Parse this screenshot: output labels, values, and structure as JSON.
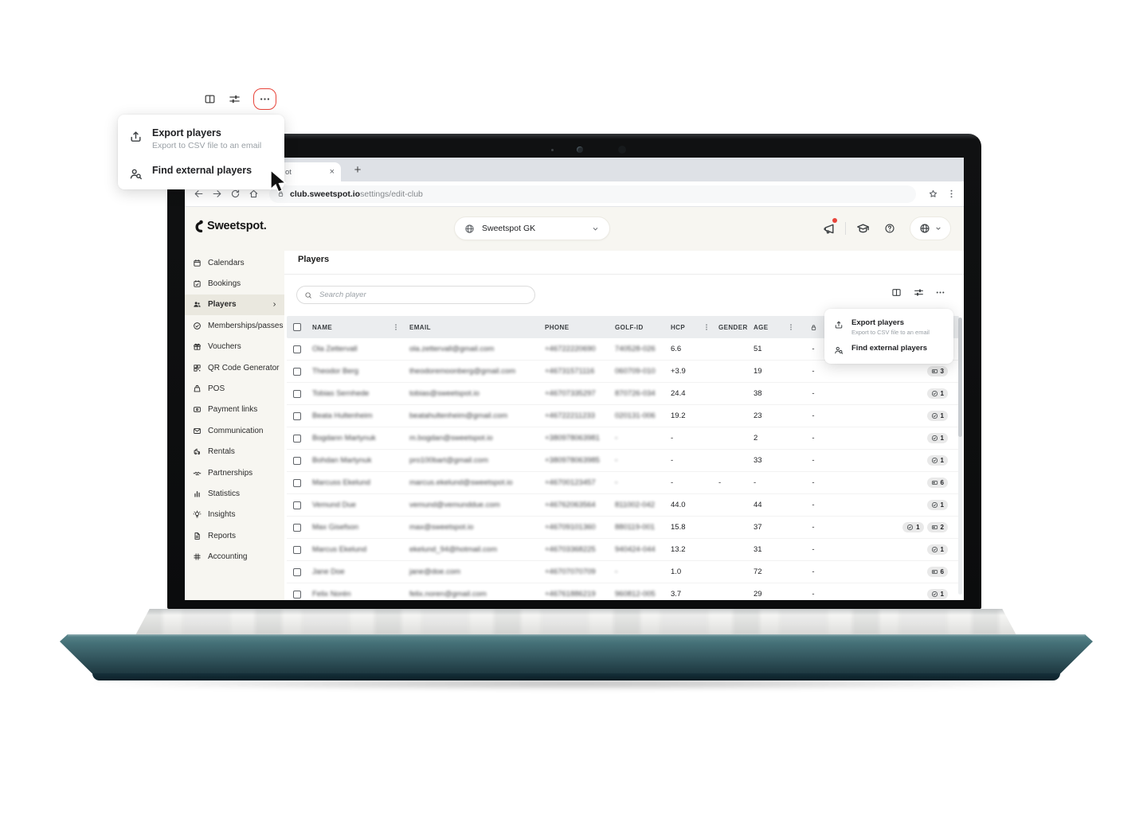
{
  "colors": {
    "accent_red": "#e8443a",
    "laptop_base_teal": "#3f6a71",
    "app_background": "#f7f6f1",
    "selected_sidebar_item": "#eae8df",
    "table_header_bg": "#ebedef"
  },
  "browser": {
    "tab_label": "ot",
    "close_tab": "×",
    "new_tab_button": "+",
    "url_host": "club.sweetspot.io",
    "url_path": "settings/edit-club",
    "icons": [
      "back-icon",
      "forward-icon",
      "reload-icon",
      "home-icon",
      "lock-icon",
      "star-icon",
      "kebab-icon"
    ]
  },
  "actions_menu": {
    "toolbar_icons": [
      "table-columns-icon",
      "filter-icon",
      "more-options-icon"
    ],
    "items": [
      {
        "icon": "export-icon",
        "label": "Export players",
        "sublabel": "Export to CSV file to an email"
      },
      {
        "icon": "find-external-icon",
        "label": "Find external players",
        "sublabel": ""
      }
    ]
  },
  "app": {
    "header": {
      "logo": "Sweetspot.",
      "club_selector": {
        "icon": "globe-icon",
        "label": "Sweetspot GK",
        "chevron": "chevron-down-icon"
      },
      "right_icons": [
        {
          "name": "announcements-icon",
          "has_red_dot": true
        },
        {
          "name": "education-icon"
        },
        {
          "name": "help-icon"
        },
        {
          "name": "globe-icon"
        }
      ]
    },
    "sidebar": {
      "items": [
        {
          "icon": "calendar-icon",
          "label": "Calendars"
        },
        {
          "icon": "calendar-check-icon",
          "label": "Bookings"
        },
        {
          "icon": "players-icon",
          "label": "Players",
          "selected": true,
          "chevron": true
        },
        {
          "icon": "membership-icon",
          "label": "Memberships/passes"
        },
        {
          "icon": "voucher-icon",
          "label": "Vouchers"
        },
        {
          "icon": "qr-icon",
          "label": "QR Code Generator"
        },
        {
          "icon": "pos-icon",
          "label": "POS"
        },
        {
          "icon": "payment-links-icon",
          "label": "Payment links"
        },
        {
          "icon": "communication-icon",
          "label": "Communication"
        },
        {
          "icon": "rentals-icon",
          "label": "Rentals"
        },
        {
          "icon": "partnerships-icon",
          "label": "Partnerships"
        },
        {
          "icon": "statistics-icon",
          "label": "Statistics"
        },
        {
          "icon": "insights-icon",
          "label": "Insights"
        },
        {
          "icon": "reports-icon",
          "label": "Reports"
        },
        {
          "icon": "accounting-icon",
          "label": "Accounting"
        }
      ]
    },
    "main": {
      "title": "Players",
      "search_placeholder": "Search player",
      "table": {
        "columns": [
          "NAME",
          "EMAIL",
          "PHONE",
          "GOLF-ID",
          "HCP",
          "GENDER",
          "AGE"
        ],
        "rows": [
          {
            "name": "Ola Zettervall",
            "email": "ola.zettervall@gmail.com",
            "phone": "+46722220690",
            "golf_id": "740528-026",
            "hcp": "6.6",
            "gender": "",
            "age": "51",
            "lock": "-",
            "badges": []
          },
          {
            "name": "Theodor Berg",
            "email": "theodoremoonberg@gmail.com",
            "phone": "+46731571116",
            "golf_id": "060709-010",
            "hcp": "+3.9",
            "gender": "",
            "age": "19",
            "lock": "-",
            "badges": [
              {
                "icon": "card-badge-icon",
                "count": "3"
              }
            ]
          },
          {
            "name": "Tobias Sernhede",
            "email": "tobias@sweetspot.io",
            "phone": "+46707335297",
            "golf_id": "870726-034",
            "hcp": "24.4",
            "gender": "",
            "age": "38",
            "lock": "-",
            "badges": [
              {
                "icon": "check-badge-icon",
                "count": "1"
              }
            ]
          },
          {
            "name": "Beata Hultenheim",
            "email": "beatahultenheim@gmail.com",
            "phone": "+46722211233",
            "golf_id": "020131-006",
            "hcp": "19.2",
            "gender": "",
            "age": "23",
            "lock": "-",
            "badges": [
              {
                "icon": "check-badge-icon",
                "count": "1"
              }
            ]
          },
          {
            "name": "Bogdann Martynuk",
            "email": "m.bogdan@sweetspot.io",
            "phone": "+380978063981",
            "golf_id": "-",
            "hcp": "-",
            "gender": "",
            "age": "2",
            "lock": "-",
            "badges": [
              {
                "icon": "check-badge-icon",
                "count": "1"
              }
            ]
          },
          {
            "name": "Bohdan Martynuk",
            "email": "pro100bart@gmail.com",
            "phone": "+380978063985",
            "golf_id": "-",
            "hcp": "-",
            "gender": "",
            "age": "33",
            "lock": "-",
            "badges": [
              {
                "icon": "check-badge-icon",
                "count": "1"
              }
            ]
          },
          {
            "name": "Marcuss Ekelund",
            "email": "marcus.ekelund@sweetspot.io",
            "phone": "+46700123457",
            "golf_id": "-",
            "hcp": "-",
            "gender": "-",
            "age": "-",
            "lock": "-",
            "badges": [
              {
                "icon": "card-badge-icon",
                "count": "6"
              }
            ]
          },
          {
            "name": "Vemund Due",
            "email": "vemund@vemunddue.com",
            "phone": "+46762063564",
            "golf_id": "811002-042",
            "hcp": "44.0",
            "gender": "",
            "age": "44",
            "lock": "-",
            "badges": [
              {
                "icon": "check-badge-icon",
                "count": "1"
              }
            ]
          },
          {
            "name": "Max Gisefson",
            "email": "max@sweetspot.io",
            "phone": "+46709101360",
            "golf_id": "880119-001",
            "hcp": "15.8",
            "gender": "",
            "age": "37",
            "lock": "-",
            "badges": [
              {
                "icon": "check-badge-icon",
                "count": "1"
              },
              {
                "icon": "card-badge-icon",
                "count": "2"
              }
            ]
          },
          {
            "name": "Marcus Ekelund",
            "email": "ekelund_94@hotmail.com",
            "phone": "+46703368225",
            "golf_id": "940424-044",
            "hcp": "13.2",
            "gender": "",
            "age": "31",
            "lock": "-",
            "badges": [
              {
                "icon": "check-badge-icon",
                "count": "1"
              }
            ]
          },
          {
            "name": "Jane Doe",
            "email": "jane@doe.com",
            "phone": "+46707070709",
            "golf_id": "-",
            "hcp": "1.0",
            "gender": "",
            "age": "72",
            "lock": "-",
            "badges": [
              {
                "icon": "card-badge-icon",
                "count": "6"
              }
            ]
          },
          {
            "name": "Felix Norén",
            "email": "felix.noren@gmail.com",
            "phone": "+46761886219",
            "golf_id": "960812-005",
            "hcp": "3.7",
            "gender": "",
            "age": "29",
            "lock": "-",
            "badges": [
              {
                "icon": "check-badge-icon",
                "count": "1"
              }
            ]
          }
        ]
      }
    }
  }
}
